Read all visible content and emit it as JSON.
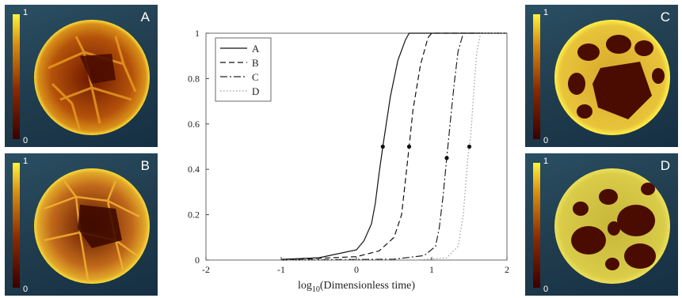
{
  "panels": [
    {
      "label": "A",
      "cbar_max": "1",
      "cbar_min": "0"
    },
    {
      "label": "B",
      "cbar_max": "1",
      "cbar_min": "0"
    },
    {
      "label": "C",
      "cbar_max": "1",
      "cbar_min": "0"
    },
    {
      "label": "D",
      "cbar_max": "1",
      "cbar_min": "0"
    }
  ],
  "chart_data": {
    "type": "line",
    "xlabel": "log10(Dimensionless time)",
    "xlim": [
      -2,
      2
    ],
    "ylim": [
      0,
      1
    ],
    "xticks": [
      "-2",
      "-1",
      "0",
      "1",
      "2"
    ],
    "yticks": [
      "0",
      "0.2",
      "0.4",
      "0.6",
      "0.8",
      "1"
    ],
    "legend_position": "top-left",
    "series": [
      {
        "name": "A",
        "style": "solid",
        "color": "#111111",
        "x": [
          -1.0,
          -0.5,
          0.0,
          0.1,
          0.2,
          0.25,
          0.3,
          0.35,
          0.45,
          0.55,
          0.65,
          0.7,
          2.0
        ],
        "y": [
          0.003,
          0.01,
          0.045,
          0.085,
          0.16,
          0.25,
          0.38,
          0.5,
          0.72,
          0.88,
          0.97,
          1.0,
          1.0
        ],
        "marker": {
          "x": 0.35,
          "y": 0.5
        }
      },
      {
        "name": "B",
        "style": "dashed",
        "color": "#111111",
        "x": [
          -1.0,
          0.0,
          0.3,
          0.5,
          0.6,
          0.65,
          0.7,
          0.75,
          0.85,
          0.95,
          1.0,
          2.0
        ],
        "y": [
          0.0,
          0.015,
          0.04,
          0.1,
          0.2,
          0.35,
          0.5,
          0.66,
          0.86,
          0.98,
          1.0,
          1.0
        ],
        "marker": {
          "x": 0.7,
          "y": 0.5
        }
      },
      {
        "name": "C",
        "style": "dashdot",
        "color": "#222222",
        "x": [
          -1.0,
          0.5,
          0.9,
          1.05,
          1.1,
          1.15,
          1.2,
          1.25,
          1.3,
          1.35,
          1.42,
          2.0
        ],
        "y": [
          0.0,
          0.004,
          0.02,
          0.06,
          0.14,
          0.28,
          0.45,
          0.62,
          0.78,
          0.92,
          1.0,
          1.0
        ],
        "marker": {
          "x": 1.2,
          "y": 0.45
        }
      },
      {
        "name": "D",
        "style": "dotted",
        "color": "#9a9a9a",
        "x": [
          -1.0,
          0.8,
          1.2,
          1.35,
          1.42,
          1.48,
          1.52,
          1.56,
          1.6,
          1.65,
          2.0
        ],
        "y": [
          0.0,
          0.0,
          0.01,
          0.06,
          0.2,
          0.45,
          0.55,
          0.75,
          0.92,
          1.0,
          1.0
        ],
        "marker": {
          "x": 1.5,
          "y": 0.5
        }
      }
    ]
  }
}
